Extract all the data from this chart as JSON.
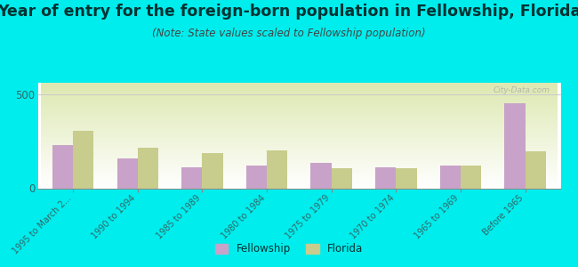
{
  "title": "Year of entry for the foreign-born population in Fellowship, Florida",
  "subtitle": "(Note: State values scaled to Fellowship population)",
  "categories": [
    "1995 to March 2...",
    "1990 to 1994",
    "1985 to 1989",
    "1980 to 1984",
    "1975 to 1979",
    "1970 to 1974",
    "1965 to 1969",
    "Before 1965"
  ],
  "fellowship_values": [
    230,
    160,
    110,
    120,
    135,
    110,
    120,
    450
  ],
  "florida_values": [
    305,
    215,
    185,
    200,
    105,
    105,
    120,
    195
  ],
  "fellowship_color": "#c8a2c8",
  "florida_color": "#c8cc8c",
  "background_color": "#00eded",
  "ylim": [
    0,
    560
  ],
  "yticks": [
    0,
    500
  ],
  "bar_width": 0.32,
  "watermark": "City-Data.com",
  "legend_fellowship": "Fellowship",
  "legend_florida": "Florida",
  "title_fontsize": 12.5,
  "subtitle_fontsize": 8.5,
  "tick_label_fontsize": 7,
  "ylabel_fontsize": 8.5,
  "title_color": "#003333",
  "subtitle_color": "#444444",
  "tick_color": "#336666"
}
